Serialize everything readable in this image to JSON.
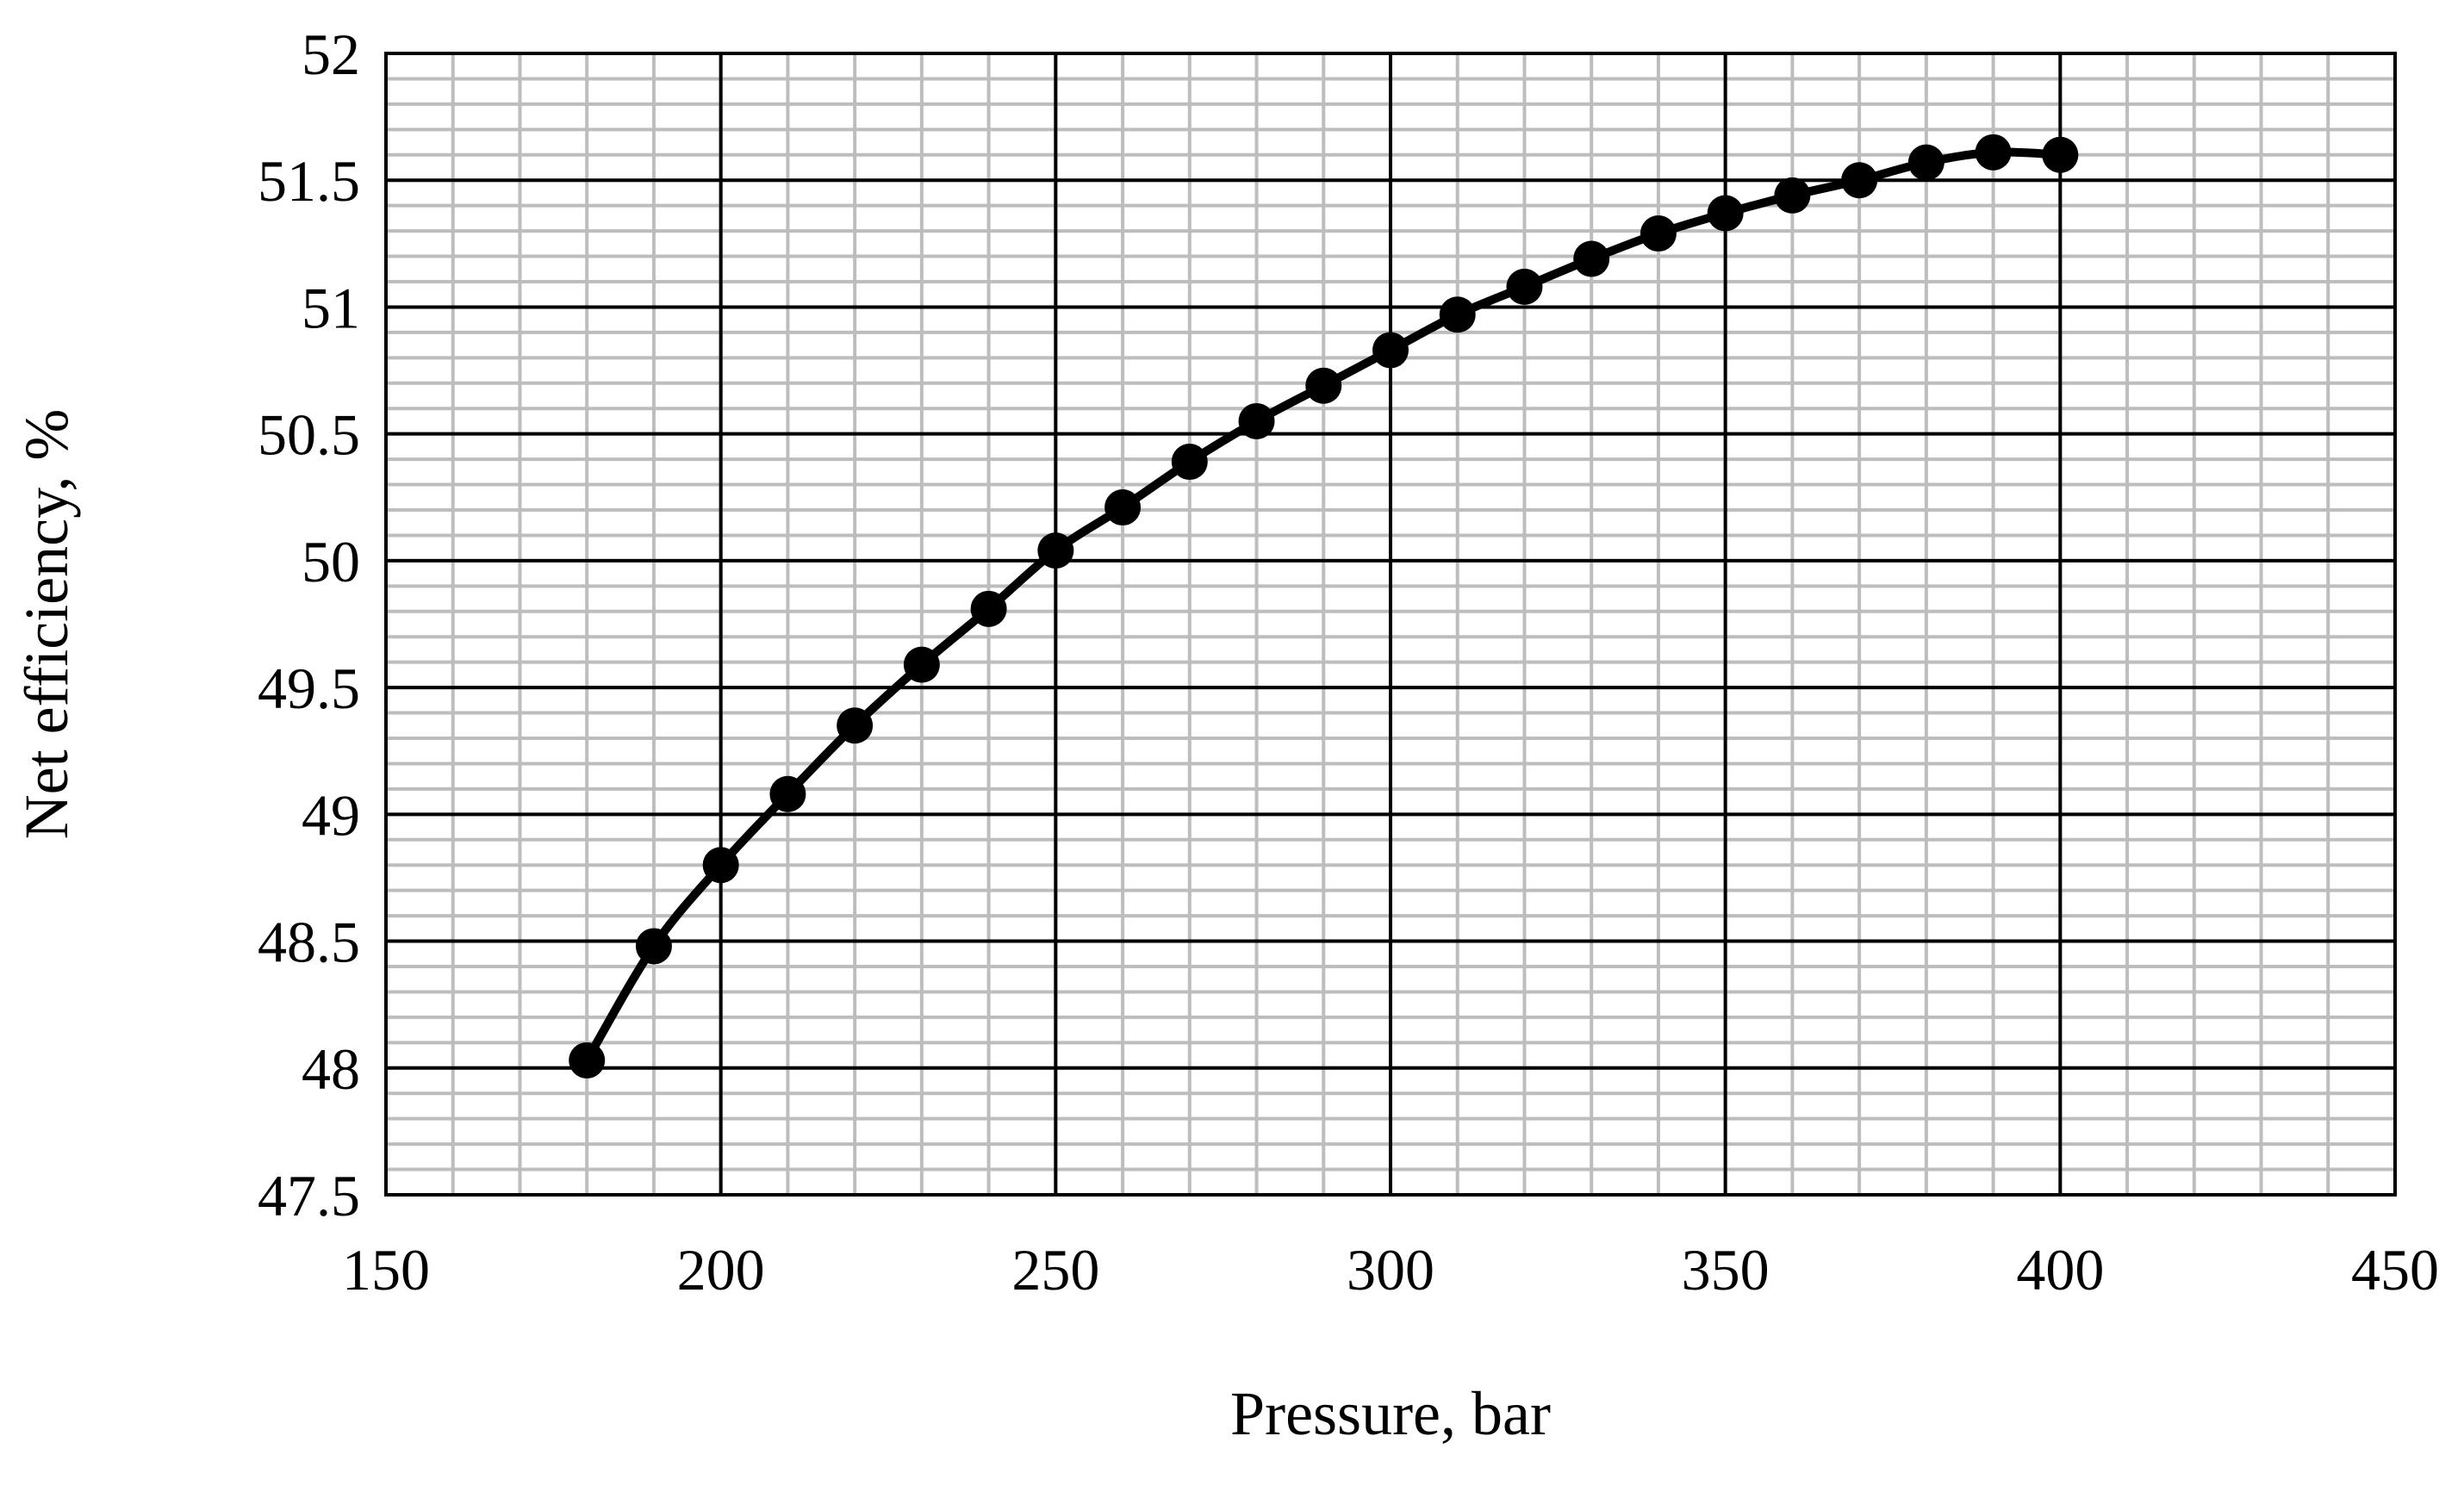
{
  "chart_data": {
    "type": "line",
    "title": "",
    "xlabel": "Pressure, bar",
    "ylabel": "Net efficiency, %",
    "xlim": [
      150,
      450
    ],
    "ylim": [
      47.5,
      52
    ],
    "x_major_step": 50,
    "x_minor_step": 10,
    "y_major_step": 0.5,
    "y_minor_step": 0.1,
    "x_tick_labels": [
      "150",
      "200",
      "250",
      "300",
      "350",
      "400",
      "450"
    ],
    "y_tick_labels": [
      "47.5",
      "48",
      "48.5",
      "49",
      "49.5",
      "50",
      "50.5",
      "51",
      "51.5",
      "52"
    ],
    "grid": {
      "major": true,
      "minor": true,
      "major_color": "#000000",
      "minor_color": "#bdbdbd"
    },
    "legend": "none",
    "series": [
      {
        "marker": "circle",
        "color": "#000000",
        "x": [
          180,
          190,
          200,
          210,
          220,
          230,
          240,
          250,
          260,
          270,
          280,
          290,
          300,
          310,
          320,
          330,
          340,
          350,
          360,
          370,
          380,
          390,
          400
        ],
        "y": [
          48.03,
          48.48,
          48.8,
          49.08,
          49.35,
          49.59,
          49.81,
          50.04,
          50.21,
          50.39,
          50.55,
          50.69,
          50.83,
          50.97,
          51.08,
          51.19,
          51.29,
          51.37,
          51.44,
          51.5,
          51.57,
          51.61,
          51.6
        ]
      }
    ]
  }
}
